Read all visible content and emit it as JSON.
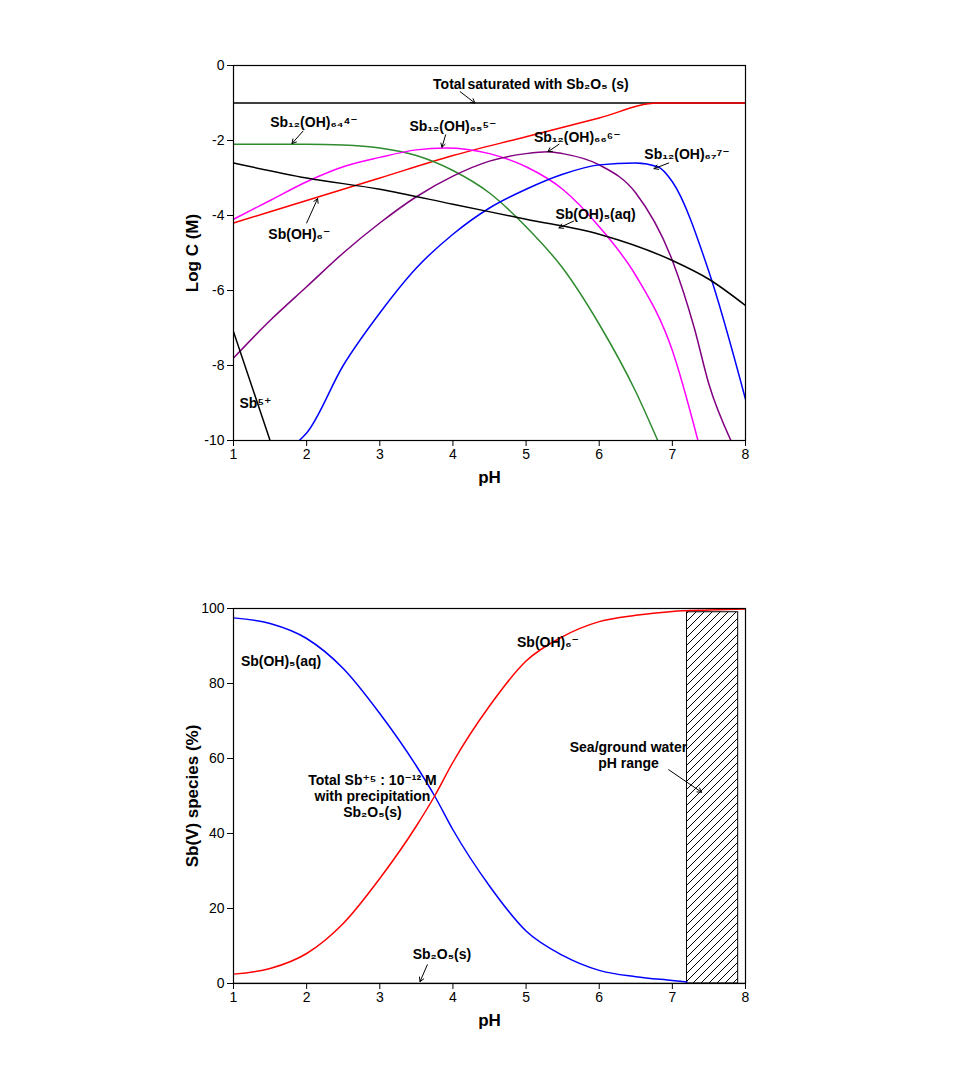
{
  "chart_data": [
    {
      "type": "line",
      "x_label": "pH",
      "y_label": "Log C (M)",
      "xlim": [
        1,
        8
      ],
      "ylim": [
        -10,
        0
      ],
      "xticks": [
        1,
        2,
        3,
        4,
        5,
        6,
        7,
        8
      ],
      "yticks": [
        -10,
        -8,
        -6,
        -4,
        -2,
        0
      ],
      "grid": false,
      "series": [
        {
          "name": "Total",
          "color": "#000000",
          "x": [
            1,
            8
          ],
          "values": [
            -1,
            -1
          ]
        },
        {
          "name": "Sb(OH)₆⁻",
          "color": "#ff0000",
          "x": [
            1,
            2,
            3,
            4,
            5,
            6,
            6.8,
            8
          ],
          "values": [
            -4.2,
            -3.6,
            -3.0,
            -2.4,
            -1.9,
            -1.4,
            -1.0,
            -1.0
          ]
        },
        {
          "name": "Sb₁₂(OH)₆₄⁴⁻",
          "color": "#2e8b2e",
          "x": [
            1,
            2,
            2.5,
            3,
            3.5,
            4,
            4.5,
            5,
            5.5,
            6,
            6.5,
            6.8
          ],
          "values": [
            -2.1,
            -2.1,
            -2.12,
            -2.2,
            -2.4,
            -2.8,
            -3.4,
            -4.3,
            -5.4,
            -6.9,
            -8.7,
            -10
          ]
        },
        {
          "name": "Sb₁₂(OH)₆₅⁵⁻",
          "color": "#ff00ff",
          "x": [
            1,
            1.5,
            2,
            2.5,
            3,
            3.5,
            3.9,
            4.5,
            5,
            5.5,
            6,
            6.5,
            7,
            7.35
          ],
          "values": [
            -4.1,
            -3.6,
            -3.1,
            -2.7,
            -2.45,
            -2.25,
            -2.2,
            -2.35,
            -2.7,
            -3.3,
            -4.3,
            -5.6,
            -7.6,
            -10
          ]
        },
        {
          "name": "Sb₁₂(OH)₆₆⁶⁻",
          "color": "#800080",
          "x": [
            1,
            1.5,
            2,
            2.5,
            3,
            3.5,
            4,
            4.5,
            5,
            5.3,
            5.5,
            6,
            6.5,
            7,
            7.3,
            7.5,
            7.8
          ],
          "values": [
            -7.8,
            -6.8,
            -5.9,
            -5.0,
            -4.2,
            -3.5,
            -2.95,
            -2.55,
            -2.35,
            -2.3,
            -2.35,
            -2.65,
            -3.4,
            -5.2,
            -7.0,
            -8.5,
            -10
          ]
        },
        {
          "name": "Sb₁₂(OH)₆₇⁷⁻",
          "color": "#0000ff",
          "x": [
            1.9,
            2,
            2.5,
            3,
            3.5,
            4,
            4.5,
            5,
            5.5,
            6,
            6.5,
            6.8,
            7,
            7.5,
            8
          ],
          "values": [
            -10,
            -9.8,
            -8.0,
            -6.6,
            -5.4,
            -4.5,
            -3.8,
            -3.3,
            -2.9,
            -2.65,
            -2.6,
            -2.7,
            -3.1,
            -5.5,
            -8.9
          ]
        },
        {
          "name": "Sb(OH)₅(aq)",
          "color": "#000000",
          "x": [
            1,
            2,
            3,
            4,
            5,
            6,
            7,
            7.5,
            8
          ],
          "values": [
            -2.6,
            -3.0,
            -3.3,
            -3.7,
            -4.1,
            -4.5,
            -5.2,
            -5.7,
            -6.4
          ]
        },
        {
          "name": "Sb⁵⁺",
          "color": "#000000",
          "x": [
            1,
            1.5
          ],
          "values": [
            -7.1,
            -10
          ]
        }
      ],
      "annotations": [
        {
          "text": "Total",
          "x": 3.95,
          "y": -0.5,
          "arrow": {
            "from": [
              4.1,
              -0.7
            ],
            "to": [
              4.3,
              -1.0
            ]
          }
        },
        {
          "text": "saturated with Sb₂O₅ (s)",
          "x": 5.3,
          "y": -0.5
        },
        {
          "text": "Sb₁₂(OH)₆₄⁴⁻",
          "x": 2.1,
          "y": -1.5,
          "arrow": {
            "from": [
              1.95,
              -1.75
            ],
            "to": [
              1.8,
              -2.08
            ]
          }
        },
        {
          "text": "Sb₁₂(OH)₆₅⁵⁻",
          "x": 4.0,
          "y": -1.6,
          "arrow": {
            "from": [
              3.9,
              -1.85
            ],
            "to": [
              3.85,
              -2.18
            ]
          }
        },
        {
          "text": "Sb₁₂(OH)₆₆⁶⁻",
          "x": 5.7,
          "y": -1.9,
          "arrow": {
            "from": [
              5.45,
              -2.1
            ],
            "to": [
              5.3,
              -2.3
            ]
          }
        },
        {
          "text": "Sb₁₂(OH)₆₇⁷⁻",
          "x": 7.2,
          "y": -2.35,
          "arrow": {
            "from": [
              6.95,
              -2.6
            ],
            "to": [
              6.75,
              -2.75
            ]
          }
        },
        {
          "text": "Sb(OH)₆⁻",
          "x": 1.9,
          "y": -4.5,
          "arrow": {
            "from": [
              2.0,
              -4.2
            ],
            "to": [
              2.15,
              -3.55
            ]
          }
        },
        {
          "text": "Sb(OH)₅(aq)",
          "x": 5.95,
          "y": -3.95,
          "arrow": {
            "from": [
              5.65,
              -4.15
            ],
            "to": [
              5.45,
              -4.33
            ]
          }
        },
        {
          "text": "Sb⁵⁺",
          "x": 1.3,
          "y": -9.0
        }
      ]
    },
    {
      "type": "line",
      "x_label": "pH",
      "y_label": "Sb(V) species (%)",
      "xlim": [
        1,
        8
      ],
      "ylim": [
        0,
        100
      ],
      "xticks": [
        1,
        2,
        3,
        4,
        5,
        6,
        7,
        8
      ],
      "yticks": [
        0,
        20,
        40,
        60,
        80,
        100
      ],
      "grid": false,
      "series": [
        {
          "name": "Sb(OH)₅(aq)",
          "color": "#0000ff",
          "x": [
            1,
            1.5,
            2,
            2.5,
            3,
            3.5,
            3.75,
            4,
            4.5,
            5,
            5.5,
            6,
            6.5,
            7,
            7.2
          ],
          "values": [
            97.5,
            96,
            92,
            84,
            72,
            58,
            50,
            41,
            26,
            14,
            7.5,
            3.5,
            1.8,
            0.8,
            0.4
          ]
        },
        {
          "name": "Sb(OH)₆⁻",
          "color": "#ff0000",
          "x": [
            1,
            1.5,
            2,
            2.5,
            3,
            3.5,
            3.75,
            4,
            4.5,
            5,
            5.5,
            6,
            6.5,
            7,
            7.5,
            8
          ],
          "values": [
            2.5,
            4,
            8,
            16,
            28,
            42,
            50,
            59,
            74,
            86,
            92.5,
            96.5,
            98.2,
            99.2,
            99.6,
            99.9
          ]
        },
        {
          "name": "Sb₂O₅(s)",
          "color": "#000000",
          "x": [
            1,
            8
          ],
          "values": [
            0,
            0
          ]
        }
      ],
      "shaded": {
        "x": [
          7.2,
          7.9
        ],
        "y": [
          0,
          99
        ]
      },
      "annotations": [
        {
          "text": "Sb(OH)₅(aq)",
          "x": 1.65,
          "y": 86
        },
        {
          "text": "Sb(OH)₆⁻",
          "x": 5.3,
          "y": 91
        },
        {
          "text": "Total Sb⁺⁵ : 10⁻¹² M\nwith precipitation\nSb₂O₅(s)",
          "x": 2.9,
          "y": 50
        },
        {
          "text": "Sb₂O₅(s)",
          "x": 3.85,
          "y": 8,
          "arrow": {
            "from": [
              3.65,
              5
            ],
            "to": [
              3.55,
              0.5
            ]
          }
        },
        {
          "text": "Sea/ground water\npH range",
          "x": 6.4,
          "y": 61,
          "arrow": {
            "from": [
              6.95,
              57
            ],
            "to": [
              7.4,
              51
            ]
          }
        }
      ]
    }
  ]
}
